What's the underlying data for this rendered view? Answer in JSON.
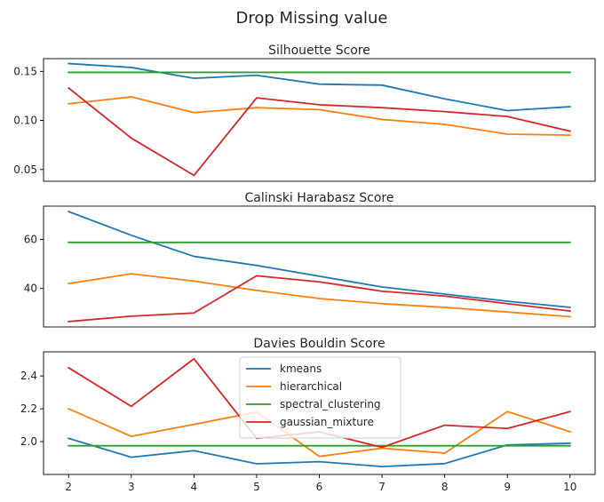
{
  "figure": {
    "title": "Drop Missing value"
  },
  "chart_data": [
    {
      "type": "line",
      "title": "Silhouette Score",
      "x": [
        2,
        3,
        4,
        5,
        6,
        7,
        8,
        9,
        10
      ],
      "ylim": [
        0.038,
        0.163
      ],
      "yticks": [
        0.05,
        0.1,
        0.15
      ],
      "ytick_labels": [
        "0.05",
        "0.10",
        "0.15"
      ],
      "show_xticks": false,
      "series": [
        {
          "name": "kmeans",
          "color": "#1f77b4",
          "values": [
            0.158,
            0.154,
            0.143,
            0.146,
            0.137,
            0.136,
            0.122,
            0.11,
            0.114
          ]
        },
        {
          "name": "hierarchical",
          "color": "#ff7f0e",
          "values": [
            0.117,
            0.124,
            0.108,
            0.113,
            0.111,
            0.101,
            0.096,
            0.086,
            0.085
          ]
        },
        {
          "name": "spectral_clustering",
          "color": "#2ca02c",
          "values": [
            0.149,
            0.149,
            0.149,
            0.149,
            0.149,
            0.149,
            0.149,
            0.149,
            0.149
          ]
        },
        {
          "name": "gaussian_mixture",
          "color": "#d62728",
          "values": [
            0.133,
            0.082,
            0.044,
            0.123,
            0.116,
            0.113,
            0.109,
            0.104,
            0.089
          ]
        }
      ]
    },
    {
      "type": "line",
      "title": "Calinski Harabasz Score",
      "x": [
        2,
        3,
        4,
        5,
        6,
        7,
        8,
        9,
        10
      ],
      "ylim": [
        24.3,
        73.6
      ],
      "yticks": [
        40,
        60
      ],
      "ytick_labels": [
        "40",
        "60"
      ],
      "show_xticks": false,
      "series": [
        {
          "name": "kmeans",
          "color": "#1f77b4",
          "values": [
            71.4,
            61.7,
            53.1,
            49.4,
            45.0,
            40.6,
            37.7,
            34.8,
            32.3
          ]
        },
        {
          "name": "hierarchical",
          "color": "#ff7f0e",
          "values": [
            42.0,
            46.0,
            43.0,
            39.2,
            35.9,
            33.8,
            32.3,
            30.4,
            28.5
          ]
        },
        {
          "name": "spectral_clustering",
          "color": "#2ca02c",
          "values": [
            58.8,
            58.8,
            58.8,
            58.8,
            58.8,
            58.8,
            58.8,
            58.8,
            58.8
          ]
        },
        {
          "name": "gaussian_mixture",
          "color": "#d62728",
          "values": [
            26.5,
            28.7,
            30.0,
            45.2,
            42.7,
            38.9,
            36.9,
            33.8,
            30.8
          ]
        }
      ]
    },
    {
      "type": "line",
      "title": "Davies Bouldin Score",
      "x": [
        2,
        3,
        4,
        5,
        6,
        7,
        8,
        9,
        10
      ],
      "ylim": [
        1.8,
        2.547
      ],
      "yticks": [
        2.0,
        2.2,
        2.4
      ],
      "ytick_labels": [
        "2.0",
        "2.2",
        "2.4"
      ],
      "show_xticks": true,
      "xtick_labels": [
        "2",
        "3",
        "4",
        "5",
        "6",
        "7",
        "8",
        "9",
        "10"
      ],
      "legend": "upper-center",
      "series": [
        {
          "name": "kmeans",
          "color": "#1f77b4",
          "values": [
            2.02,
            1.905,
            1.945,
            1.865,
            1.878,
            1.848,
            1.866,
            1.98,
            1.99
          ]
        },
        {
          "name": "hierarchical",
          "color": "#ff7f0e",
          "values": [
            2.2,
            2.032,
            2.105,
            2.18,
            1.91,
            1.96,
            1.93,
            2.183,
            2.06
          ]
        },
        {
          "name": "spectral_clustering",
          "color": "#2ca02c",
          "values": [
            1.975,
            1.975,
            1.975,
            1.975,
            1.975,
            1.975,
            1.975,
            1.975,
            1.975
          ]
        },
        {
          "name": "gaussian_mixture",
          "color": "#d62728",
          "values": [
            2.45,
            2.215,
            2.505,
            2.02,
            2.06,
            1.965,
            2.1,
            2.08,
            2.183
          ]
        }
      ]
    }
  ]
}
